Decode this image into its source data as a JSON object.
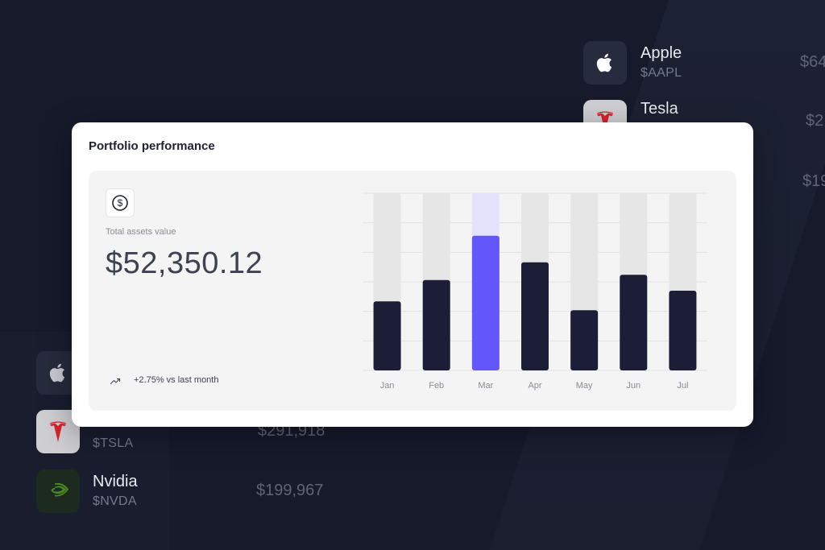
{
  "background": {
    "top_right_list": [
      {
        "name": "Apple",
        "ticker": "$AAPL",
        "price": "$64",
        "logo": "apple-logo"
      },
      {
        "name": "Tesla",
        "ticker": "",
        "price": "$2",
        "logo": "tesla-logo"
      },
      {
        "name": "",
        "ticker": "",
        "price": "$19",
        "logo": ""
      }
    ],
    "bottom_left_list": [
      {
        "name": "",
        "ticker": "",
        "price": "",
        "logo": "apple-logo"
      },
      {
        "name": "",
        "ticker": "$TSLA",
        "price": "$291,918",
        "logo": "tesla-logo"
      },
      {
        "name": "Nvidia",
        "ticker": "$NVDA",
        "price": "$199,967",
        "logo": "nvidia-logo"
      }
    ]
  },
  "card": {
    "title": "Portfolio performance",
    "icon": "dollar-circle-icon",
    "assets_label": "Total assets value",
    "assets_value": "$52,350.12",
    "trend_icon": "trend-up-icon",
    "trend_text": "+2.75% vs last month"
  },
  "colors": {
    "background": "#161a2b",
    "bar_dark": "#1b1e36",
    "bar_highlight": "#6457f9",
    "bar_track": "#e6e6e7",
    "bar_highlight_track": "#e5e3fb"
  },
  "chart_data": {
    "type": "bar",
    "categories": [
      "Jan",
      "Feb",
      "Mar",
      "Apr",
      "May",
      "Jun",
      "Jul"
    ],
    "values": [
      39,
      51,
      76,
      61,
      34,
      54,
      45
    ],
    "highlight_index": 2,
    "ylim": [
      0,
      100
    ],
    "grid": true,
    "title": "",
    "xlabel": "",
    "ylabel": ""
  }
}
